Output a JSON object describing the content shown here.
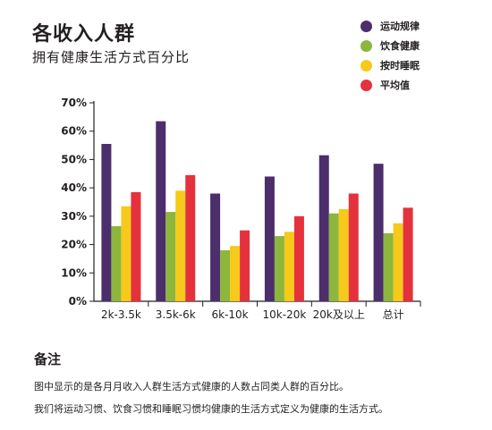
{
  "header": {
    "title": "各收入人群",
    "subtitle": "拥有健康生活方式百分比"
  },
  "notes": {
    "title": "备注",
    "lines": [
      "图中显示的是各月月收入人群生活方式健康的人数占同类人群的百分比。",
      "我们将运动习惯、饮食习惯和睡眠习惯均健康的生活方式定义为健康的生活方式。"
    ]
  },
  "chart_data": {
    "type": "bar",
    "title": "各收入人群",
    "subtitle": "拥有健康生活方式百分比",
    "xlabel": "",
    "ylabel": "",
    "ylim": [
      0,
      70
    ],
    "yticks": [
      0,
      10,
      20,
      30,
      40,
      50,
      60,
      70
    ],
    "ytick_labels": [
      "0%",
      "10%",
      "20%",
      "30%",
      "40%",
      "50%",
      "60%",
      "70%"
    ],
    "categories": [
      "2k-3.5k",
      "3.5k-6k",
      "6k-10k",
      "10k-20k",
      "20k及以上",
      "总计"
    ],
    "series": [
      {
        "name": "运动规律",
        "color": "#4b2e6b",
        "values": [
          55.5,
          63.5,
          38,
          44,
          51.5,
          48.5
        ]
      },
      {
        "name": "饮食健康",
        "color": "#8db63c",
        "values": [
          26.5,
          31.5,
          18,
          23,
          31,
          24
        ]
      },
      {
        "name": "按时睡眠",
        "color": "#f6c91a",
        "values": [
          33.5,
          39,
          19.5,
          24.5,
          32.5,
          27.5
        ]
      },
      {
        "name": "平均值",
        "color": "#e4313c",
        "values": [
          38.5,
          44.5,
          25,
          30,
          38,
          33
        ]
      }
    ],
    "grid": false,
    "legend": "top-right"
  }
}
